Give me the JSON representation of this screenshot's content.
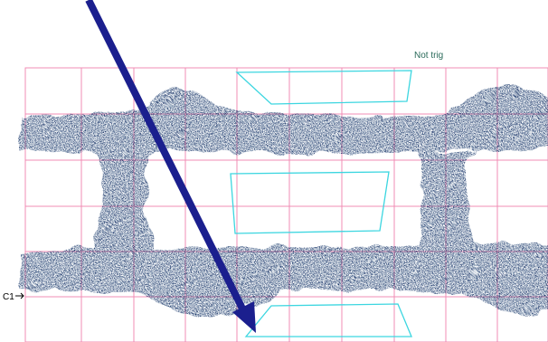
{
  "status": {
    "trigger": "Not trig"
  },
  "channel": {
    "label": "C1"
  }
}
